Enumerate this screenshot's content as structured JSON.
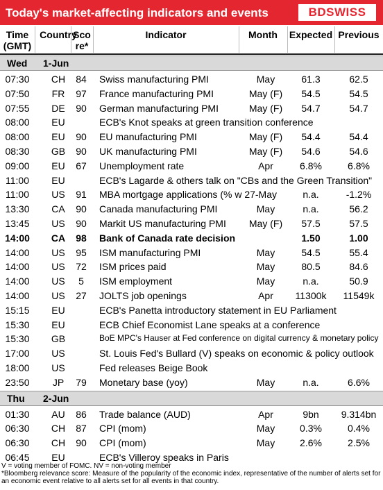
{
  "header": {
    "title": "Today's market-affecting indicators and events",
    "logo": "BDSWISS"
  },
  "columns": [
    [
      "Time",
      "(GMT)"
    ],
    [
      "Country"
    ],
    [
      "Sco",
      "re*"
    ],
    [
      "Indicator"
    ],
    [
      "Month"
    ],
    [
      "Expected"
    ],
    [
      "Previous"
    ]
  ],
  "days": [
    {
      "day": "Wed",
      "date": "1-Jun",
      "rows": [
        {
          "time": "07:30",
          "country": "CH",
          "score": "84",
          "indicator": "Swiss manufacturing PMI",
          "month": "May",
          "expected": "61.3",
          "previous": "62.5"
        },
        {
          "time": "07:50",
          "country": "FR",
          "score": "97",
          "indicator": "France manufacturing PMI",
          "month": "May (F)",
          "expected": "54.5",
          "previous": "54.5"
        },
        {
          "time": "07:55",
          "country": "DE",
          "score": "90",
          "indicator": "German manufacturing PMI",
          "month": "May (F)",
          "expected": "54.7",
          "previous": "54.7"
        },
        {
          "time": "08:00",
          "country": "EU",
          "indicator": "ECB's Knot speaks at green transition conference"
        },
        {
          "time": "08:00",
          "country": "EU",
          "score": "90",
          "indicator": "EU manufacturing PMI",
          "month": "May (F)",
          "expected": "54.4",
          "previous": "54.4"
        },
        {
          "time": "08:30",
          "country": "GB",
          "score": "90",
          "indicator": "UK manufacturing PMI",
          "month": "May (F)",
          "expected": "54.6",
          "previous": "54.6"
        },
        {
          "time": "09:00",
          "country": "EU",
          "score": "67",
          "indicator": "Unemployment rate",
          "month": "Apr",
          "expected": "6.8%",
          "previous": "6.8%"
        },
        {
          "time": "11:00",
          "country": "EU",
          "indicator": "ECB's Lagarde & others talk on \"CBs and the Green Transition\""
        },
        {
          "time": "11:00",
          "country": "US",
          "score": "91",
          "indicator": "MBA mortgage applications (% w 27-May",
          "expected": "n.a.",
          "previous": "-1.2%"
        },
        {
          "time": "13:30",
          "country": "CA",
          "score": "90",
          "indicator": "Canada manufacturing PMI",
          "month": "May",
          "expected": "n.a.",
          "previous": "56.2"
        },
        {
          "time": "13:45",
          "country": "US",
          "score": "90",
          "indicator": "Markit US manufacturing PMI",
          "month": "May (F)",
          "expected": "57.5",
          "previous": "57.5"
        },
        {
          "time": "14:00",
          "country": "CA",
          "score": "98",
          "indicator": "Bank of Canada rate decision",
          "expected": "1.50",
          "previous": "1.00",
          "bold": true
        },
        {
          "time": "14:00",
          "country": "US",
          "score": "95",
          "indicator": "ISM manufacturing PMI",
          "month": "May",
          "expected": "54.5",
          "previous": "55.4"
        },
        {
          "time": "14:00",
          "country": "US",
          "score": "72",
          "indicator": "ISM prices paid",
          "month": "May",
          "expected": "80.5",
          "previous": "84.6"
        },
        {
          "time": "14:00",
          "country": "US",
          "score": "5",
          "indicator": "ISM employment",
          "month": "May",
          "expected": "n.a.",
          "previous": "50.9"
        },
        {
          "time": "14:00",
          "country": "US",
          "score": "27",
          "indicator": "JOLTS job openings",
          "month": "Apr",
          "expected": "11300k",
          "previous": "11549k"
        },
        {
          "time": "15:15",
          "country": "EU",
          "indicator": "ECB's Panetta introductory statement in EU Parliament"
        },
        {
          "time": "15:30",
          "country": "EU",
          "indicator": "ECB Chief Economist Lane speaks at a conference"
        },
        {
          "time": "15:30",
          "country": "GB",
          "indicator": "BoE MPC's Hauser at Fed conference on digital currency & monetary policy"
        },
        {
          "time": "17:00",
          "country": "US",
          "indicator": "St. Louis Fed's Bullard (V) speaks on economic & policy outlook"
        },
        {
          "time": "18:00",
          "country": "US",
          "indicator": "Fed releases Beige Book"
        },
        {
          "time": "23:50",
          "country": "JP",
          "score": "79",
          "indicator": "Monetary base (yoy)",
          "month": "May",
          "expected": "n.a.",
          "previous": "6.6%"
        }
      ]
    },
    {
      "day": "Thu",
      "date": "2-Jun",
      "rows": [
        {
          "time": "01:30",
          "country": "AU",
          "score": "86",
          "indicator": "Trade balance (AUD)",
          "month": "Apr",
          "expected": "9bn",
          "previous": "9.314bn"
        },
        {
          "time": "06:30",
          "country": "CH",
          "score": "87",
          "indicator": "CPI (mom)",
          "month": "May",
          "expected": "0.3%",
          "previous": "0.4%"
        },
        {
          "time": "06:30",
          "country": "CH",
          "score": "90",
          "indicator": "CPI (mom)",
          "month": "May",
          "expected": "2.6%",
          "previous": "2.5%"
        },
        {
          "time": "06:45",
          "country": "EU",
          "indicator": "ECB's Villeroy speaks in Paris"
        }
      ]
    }
  ],
  "footnotes": [
    "V = voting member of FOMC. NV = non-voting member",
    "*Bloomberg relevance score:  Measure of the popularity of the economic index, representative of the number of alerts set for an economic event relative to all alerts set for all events in that country."
  ]
}
